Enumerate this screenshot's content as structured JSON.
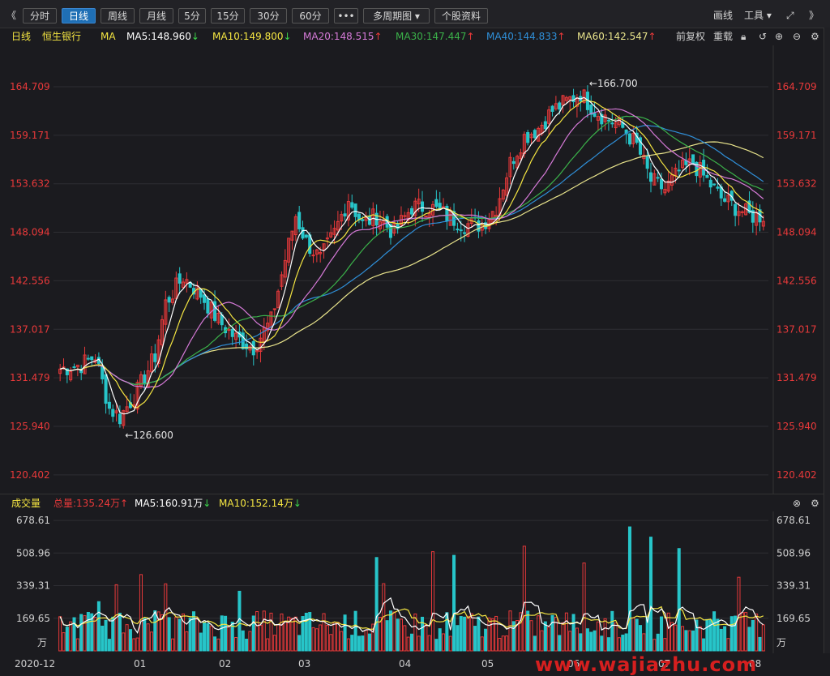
{
  "toolbar": {
    "nav_left": "《",
    "nav_right": "》",
    "periods": [
      "分时",
      "日线",
      "周线",
      "月线",
      "5分",
      "15分",
      "30分",
      "60分"
    ],
    "active_period": "日线",
    "more": "•••",
    "multi_period": "多周期图",
    "stock_info": "个股资料",
    "draw": "画线",
    "tools": "工具"
  },
  "legend": {
    "period": "日线",
    "stock_name": "恒生银行",
    "ma_label": "MA",
    "ma5": "MA5:148.960",
    "ma10": "MA10:149.800",
    "ma20": "MA20:148.515",
    "ma30": "MA30:147.447",
    "ma40": "MA40:144.833",
    "ma60": "MA60:142.547",
    "adjust_forward": "前复权",
    "adjust_reset": "重载"
  },
  "colors": {
    "up": "#e8393a",
    "down": "#27c5c9",
    "ma5": "#ffffff",
    "ma10": "#f5e642",
    "ma20": "#d67ad8",
    "ma30": "#3bb24a",
    "ma40": "#2f8fd8",
    "ma60": "#e9e48c",
    "axis_red": "#e8393a"
  },
  "price_axis": {
    "ticks": [
      "164.709",
      "159.171",
      "153.632",
      "148.094",
      "142.556",
      "137.017",
      "131.479",
      "125.940",
      "120.402"
    ],
    "high_marker": "166.700",
    "low_marker": "126.600"
  },
  "volume": {
    "title": "成交量",
    "total": "总量:135.24万",
    "ma5": "MA5:160.91万",
    "ma10": "MA10:152.14万",
    "ticks": [
      "678.61",
      "508.96",
      "339.31",
      "169.65"
    ],
    "unit": "万"
  },
  "x_axis": {
    "labels": [
      "2020-12",
      "01",
      "02",
      "03",
      "04",
      "05",
      "06",
      "07",
      "08"
    ]
  },
  "watermark": "www.wajiazhu.com",
  "chart_data": {
    "type": "candlestick",
    "ylim": [
      119.0,
      168.5
    ],
    "price_ticks": [
      164.709,
      159.171,
      153.632,
      148.094,
      142.556,
      137.017,
      131.479,
      125.94,
      120.402
    ],
    "close_anchors": [
      [
        0,
        132.5
      ],
      [
        6,
        133
      ],
      [
        10,
        134
      ],
      [
        14,
        128
      ],
      [
        17,
        127
      ],
      [
        22,
        130
      ],
      [
        27,
        134
      ],
      [
        30,
        140
      ],
      [
        35,
        143
      ],
      [
        40,
        141
      ],
      [
        45,
        138
      ],
      [
        50,
        136
      ],
      [
        55,
        135
      ],
      [
        60,
        138
      ],
      [
        64,
        145
      ],
      [
        67,
        150
      ],
      [
        70,
        147
      ],
      [
        74,
        145
      ],
      [
        78,
        148
      ],
      [
        82,
        152
      ],
      [
        86,
        149
      ],
      [
        90,
        150
      ],
      [
        95,
        148
      ],
      [
        100,
        151
      ],
      [
        105,
        151
      ],
      [
        110,
        150
      ],
      [
        115,
        149
      ],
      [
        120,
        149
      ],
      [
        124,
        151
      ],
      [
        128,
        156
      ],
      [
        132,
        159
      ],
      [
        136,
        160
      ],
      [
        140,
        162
      ],
      [
        144,
        163
      ],
      [
        148,
        164
      ],
      [
        152,
        162
      ],
      [
        156,
        161
      ],
      [
        160,
        160
      ],
      [
        164,
        158
      ],
      [
        168,
        154
      ],
      [
        172,
        153
      ],
      [
        176,
        155
      ],
      [
        180,
        156
      ],
      [
        184,
        154
      ],
      [
        188,
        152
      ],
      [
        192,
        151
      ],
      [
        196,
        150
      ],
      [
        200,
        150
      ]
    ],
    "ma_last": {
      "ma5": 148.96,
      "ma10": 149.8,
      "ma20": 148.515,
      "ma30": 147.447,
      "ma40": 144.833,
      "ma60": 142.547
    },
    "volume_ylim": [
      0,
      700
    ],
    "volume_ticks": [
      678.61,
      508.96,
      339.31,
      169.65
    ],
    "volume_last": 135.24
  }
}
